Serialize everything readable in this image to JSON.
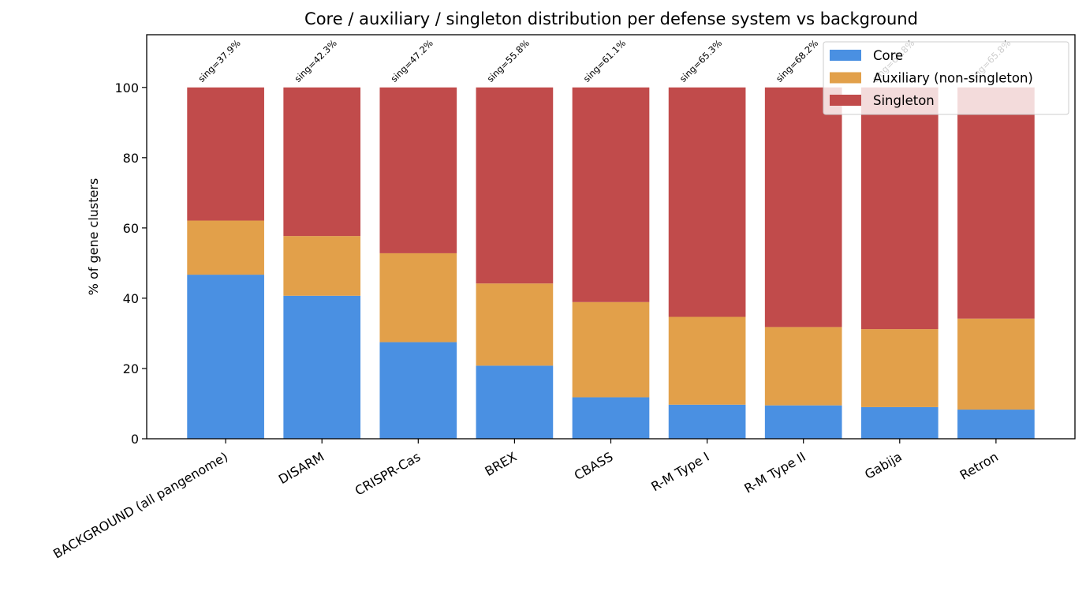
{
  "chart_data": {
    "type": "bar",
    "stacked": true,
    "title": "Core / auxiliary / singleton distribution per defense system vs background",
    "xlabel": "",
    "ylabel": "% of gene clusters",
    "ylim": [
      0,
      115
    ],
    "yticks": [
      0,
      20,
      40,
      60,
      80,
      100
    ],
    "grid": false,
    "legend_position": "top-right",
    "categories": [
      "BACKGROUND (all pangenome)",
      "DISARM",
      "CRISPR-Cas",
      "BREX",
      "CBASS",
      "R-M Type I",
      "R-M Type II",
      "Gabija",
      "Retron"
    ],
    "series": [
      {
        "name": "Core",
        "color": "#4a90e2",
        "values": [
          46.7,
          40.7,
          27.5,
          20.8,
          11.8,
          9.7,
          9.5,
          9.0,
          8.3
        ]
      },
      {
        "name": "Auxiliary (non-singleton)",
        "color": "#e2a04a",
        "values": [
          15.4,
          17.0,
          25.3,
          23.4,
          27.1,
          25.0,
          22.3,
          22.2,
          25.9
        ]
      },
      {
        "name": "Singleton",
        "color": "#c14b4b",
        "values": [
          37.9,
          42.3,
          47.2,
          55.8,
          61.1,
          65.3,
          68.2,
          68.8,
          65.8
        ]
      }
    ],
    "annotations": [
      "sing=37.9%",
      "sing=42.3%",
      "sing=47.2%",
      "sing=55.8%",
      "sing=61.1%",
      "sing=65.3%",
      "sing=68.2%",
      "sing=68.8%",
      "sing=65.8%"
    ]
  }
}
